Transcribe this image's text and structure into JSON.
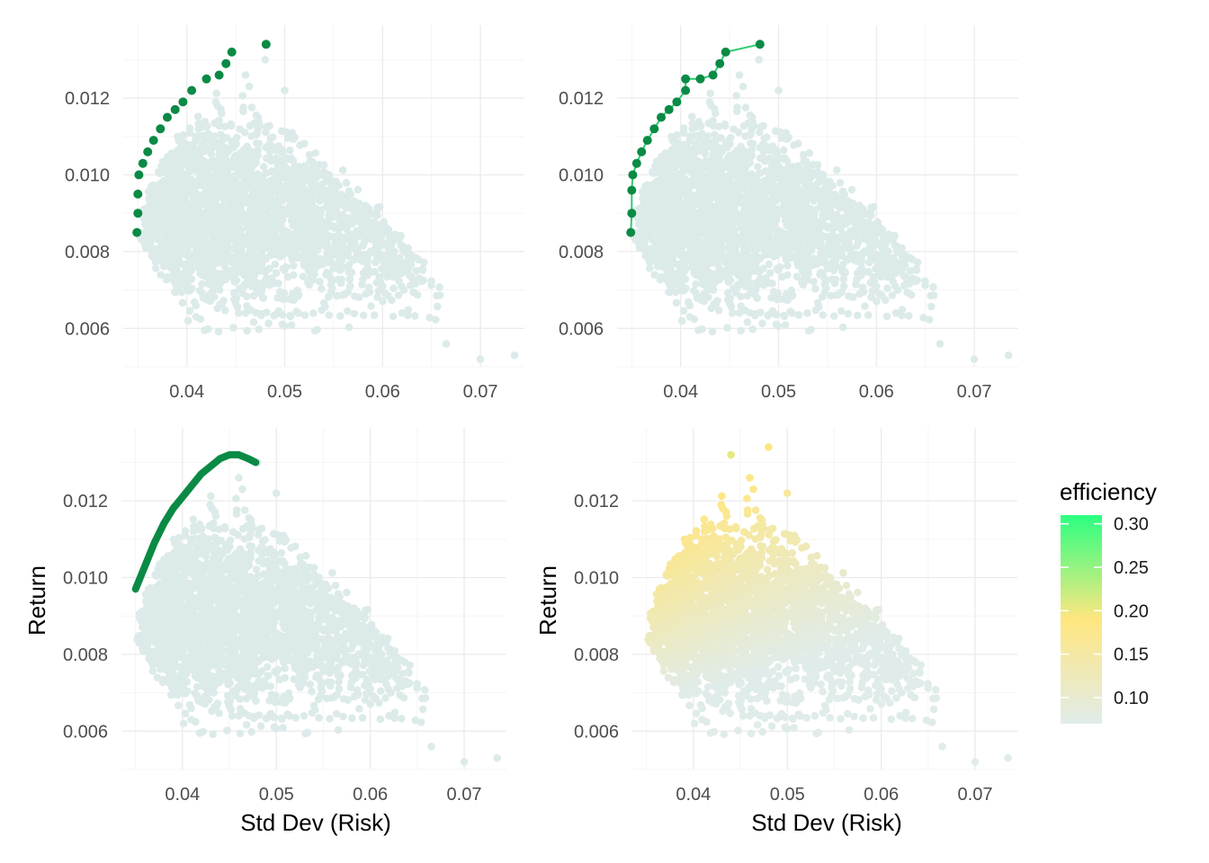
{
  "colors": {
    "cloud": "#dcebea",
    "frontier": "#0a8a45",
    "frontier_line": "#2ecc71",
    "grid_major": "#ebebeb",
    "grid_minor": "#f5f5f5",
    "gradient_low": "#e0ecea",
    "gradient_mid": "#ffe680",
    "gradient_high": "#2bff80"
  },
  "chart_data": [
    {
      "type": "scatter",
      "panel": "top-left",
      "title": "",
      "xlabel": "",
      "ylabel": "",
      "xlim": [
        0.0335,
        0.0745
      ],
      "ylim": [
        0.005,
        0.0139
      ],
      "x_ticks": [
        "0.04",
        "0.05",
        "0.06",
        "0.07"
      ],
      "y_ticks": [
        "0.006",
        "0.008",
        "0.010",
        "0.012"
      ],
      "grid": true,
      "series": [
        {
          "role": "simulated portfolios",
          "color": "cloud",
          "points": [
            [
              0.0735,
              0.0053
            ],
            [
              0.07,
              0.0052
            ],
            [
              0.0665,
              0.0056
            ],
            [
              0.048,
              0.013
            ],
            [
              0.05,
              0.0122
            ],
            [
              0.046,
              0.0126
            ],
            [
              0.06,
              0.0071
            ],
            [
              0.062,
              0.0064
            ]
          ]
        },
        {
          "role": "frontier portfolios",
          "color": "frontier",
          "points": [
            [
              0.0349,
              0.0085
            ],
            [
              0.035,
              0.009
            ],
            [
              0.035,
              0.0095
            ],
            [
              0.0351,
              0.01
            ],
            [
              0.0355,
              0.0103
            ],
            [
              0.036,
              0.0106
            ],
            [
              0.0366,
              0.0109
            ],
            [
              0.0373,
              0.0112
            ],
            [
              0.038,
              0.0115
            ],
            [
              0.0388,
              0.0117
            ],
            [
              0.0396,
              0.0119
            ],
            [
              0.0405,
              0.0122
            ],
            [
              0.042,
              0.0125
            ],
            [
              0.0433,
              0.0126
            ],
            [
              0.044,
              0.0129
            ],
            [
              0.0446,
              0.0132
            ],
            [
              0.0481,
              0.0134
            ]
          ]
        }
      ]
    },
    {
      "type": "scatter",
      "panel": "top-right",
      "title": "",
      "xlabel": "",
      "ylabel": "",
      "xlim": [
        0.0335,
        0.0745
      ],
      "ylim": [
        0.005,
        0.0139
      ],
      "x_ticks": [
        "0.04",
        "0.05",
        "0.06",
        "0.07"
      ],
      "y_ticks": [
        "0.006",
        "0.008",
        "0.010",
        "0.012"
      ],
      "grid": true,
      "series": [
        {
          "role": "simulated portfolios",
          "color": "cloud",
          "points": [
            [
              0.0735,
              0.0053
            ],
            [
              0.07,
              0.0052
            ],
            [
              0.0665,
              0.0056
            ],
            [
              0.048,
              0.013
            ],
            [
              0.05,
              0.0122
            ],
            [
              0.046,
              0.0126
            ],
            [
              0.06,
              0.0071
            ],
            [
              0.062,
              0.0064
            ]
          ]
        },
        {
          "role": "frontier portfolios (connected)",
          "color": "frontier",
          "line_color": "frontier_line",
          "connected": true,
          "points": [
            [
              0.0349,
              0.0085
            ],
            [
              0.035,
              0.009
            ],
            [
              0.035,
              0.0096
            ],
            [
              0.0351,
              0.01
            ],
            [
              0.0355,
              0.0103
            ],
            [
              0.036,
              0.0106
            ],
            [
              0.0366,
              0.0109
            ],
            [
              0.0373,
              0.0112
            ],
            [
              0.038,
              0.0115
            ],
            [
              0.0388,
              0.0117
            ],
            [
              0.0396,
              0.0119
            ],
            [
              0.0405,
              0.0122
            ],
            [
              0.0405,
              0.0125
            ],
            [
              0.042,
              0.0125
            ],
            [
              0.0433,
              0.0126
            ],
            [
              0.044,
              0.0129
            ],
            [
              0.0446,
              0.0132
            ],
            [
              0.0481,
              0.0134
            ]
          ]
        }
      ]
    },
    {
      "type": "scatter",
      "panel": "bottom-left",
      "title": "",
      "xlabel": "Std Dev (Risk)",
      "ylabel": "Return",
      "xlim": [
        0.0335,
        0.0745
      ],
      "ylim": [
        0.005,
        0.0139
      ],
      "x_ticks": [
        "0.04",
        "0.05",
        "0.06",
        "0.07"
      ],
      "y_ticks": [
        "0.006",
        "0.008",
        "0.010",
        "0.012"
      ],
      "grid": true,
      "series": [
        {
          "role": "simulated portfolios",
          "color": "cloud",
          "points": [
            [
              0.0735,
              0.0053
            ],
            [
              0.07,
              0.0052
            ],
            [
              0.0665,
              0.0056
            ],
            [
              0.048,
              0.013
            ],
            [
              0.05,
              0.0122
            ],
            [
              0.046,
              0.0126
            ],
            [
              0.06,
              0.0071
            ],
            [
              0.062,
              0.0064
            ]
          ]
        },
        {
          "role": "fitted frontier curve",
          "color": "frontier",
          "curve": true,
          "points": [
            [
              0.035,
              0.0097
            ],
            [
              0.036,
              0.0103
            ],
            [
              0.037,
              0.0109
            ],
            [
              0.038,
              0.0114
            ],
            [
              0.039,
              0.0118
            ],
            [
              0.04,
              0.0121
            ],
            [
              0.041,
              0.0124
            ],
            [
              0.042,
              0.0127
            ],
            [
              0.043,
              0.0129
            ],
            [
              0.044,
              0.0131
            ],
            [
              0.045,
              0.0132
            ],
            [
              0.046,
              0.0132
            ],
            [
              0.047,
              0.0131
            ],
            [
              0.0478,
              0.013
            ]
          ]
        }
      ]
    },
    {
      "type": "scatter",
      "panel": "bottom-right",
      "title": "",
      "xlabel": "Std Dev (Risk)",
      "ylabel": "Return",
      "xlim": [
        0.0335,
        0.0745
      ],
      "ylim": [
        0.005,
        0.0139
      ],
      "x_ticks": [
        "0.04",
        "0.05",
        "0.06",
        "0.07"
      ],
      "y_ticks": [
        "0.006",
        "0.008",
        "0.010",
        "0.012"
      ],
      "grid": true,
      "color_by": "efficiency",
      "legend": {
        "title": "efficiency",
        "position": "right",
        "min": 0.07,
        "max": 0.31,
        "ticks": [
          "0.30",
          "0.25",
          "0.20",
          "0.15",
          "0.10"
        ]
      },
      "series": [
        {
          "role": "simulated portfolios colored by efficiency",
          "points": [
            [
              0.0735,
              0.0053
            ],
            [
              0.07,
              0.0052
            ],
            [
              0.0665,
              0.0056
            ],
            [
              0.048,
              0.0134
            ],
            [
              0.05,
              0.0122
            ],
            [
              0.046,
              0.0126
            ],
            [
              0.044,
              0.0132
            ],
            [
              0.06,
              0.0071
            ],
            [
              0.062,
              0.0064
            ]
          ]
        }
      ]
    }
  ]
}
